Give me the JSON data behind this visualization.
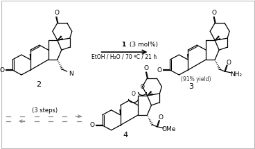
{
  "background_color": "#ffffff",
  "arrow_color": "#000000",
  "dashed_arrow_color": "#888888",
  "reaction_label_bold": "1",
  "reaction_label_normal": " (3 mol%)",
  "reaction_conditions": "EtOH / H₂O / 70 ºC / 21 h",
  "compound2_label": "2",
  "compound3_label": "3",
  "compound4_label": "4",
  "yield_label": "(91% yield)",
  "nh2_label": "NH₂",
  "steps_label": "(3 steps)",
  "ome_label": "OMe",
  "text_color": "#000000",
  "figure_width": 3.68,
  "figure_height": 2.15,
  "dpi": 100
}
